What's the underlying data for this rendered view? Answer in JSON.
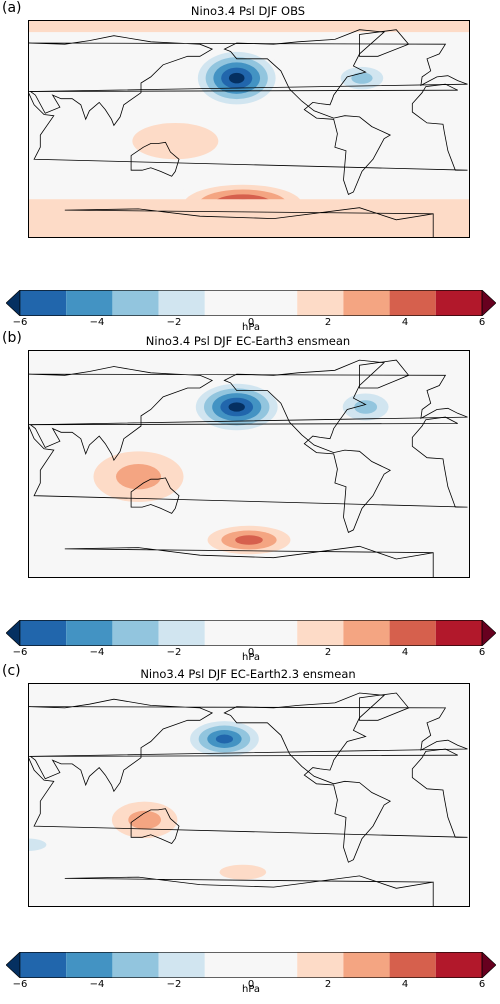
{
  "panels": [
    {
      "label": "(a)",
      "title": "Nino3.4 Psl DJF OBS",
      "features": [
        {
          "type": "ellipse",
          "lon": 200,
          "lat": 42,
          "rx": 38,
          "ry": 26,
          "level": -6
        },
        {
          "type": "ellipse",
          "lon": 302,
          "lat": 42,
          "rx": 26,
          "ry": 14,
          "level": -3
        },
        {
          "type": "ellipse",
          "lon": 150,
          "lat": -10,
          "rx": 70,
          "ry": 30,
          "level": 2
        },
        {
          "type": "ellipse",
          "lon": 205,
          "lat": -62,
          "rx": 60,
          "ry": 20,
          "level": 5
        },
        {
          "type": "band",
          "lat0": -90,
          "lat1": -58,
          "level": 2
        },
        {
          "type": "band",
          "lat0": 80,
          "lat1": 90,
          "level": 2
        },
        {
          "type": "ellipse",
          "lon": 240,
          "lat": 5,
          "rx": 60,
          "ry": 18,
          "level": -1
        },
        {
          "type": "ellipse",
          "lon": 60,
          "lat": 15,
          "rx": 50,
          "ry": 20,
          "level": 1
        }
      ]
    },
    {
      "label": "(b)",
      "title": "Nino3.4 Psl DJF EC-Earth3 ensmean",
      "features": [
        {
          "type": "ellipse",
          "lon": 200,
          "lat": 45,
          "rx": 40,
          "ry": 22,
          "level": -6
        },
        {
          "type": "ellipse",
          "lon": 305,
          "lat": 45,
          "rx": 28,
          "ry": 16,
          "level": -3
        },
        {
          "type": "ellipse",
          "lon": 120,
          "lat": -10,
          "rx": 55,
          "ry": 30,
          "level": 3
        },
        {
          "type": "ellipse",
          "lon": 210,
          "lat": -60,
          "rx": 45,
          "ry": 15,
          "level": 4
        },
        {
          "type": "ellipse",
          "lon": 40,
          "lat": 25,
          "rx": 40,
          "ry": 15,
          "level": 1
        },
        {
          "type": "ellipse",
          "lon": 270,
          "lat": -10,
          "rx": 40,
          "ry": 15,
          "level": -1
        }
      ]
    },
    {
      "label": "(c)",
      "title": "Nino3.4 Psl DJF EC-Earth2.3 ensmean",
      "features": [
        {
          "type": "ellipse",
          "lon": 190,
          "lat": 45,
          "rx": 35,
          "ry": 18,
          "level": -5
        },
        {
          "type": "ellipse",
          "lon": 125,
          "lat": -20,
          "rx": 40,
          "ry": 22,
          "level": 3
        },
        {
          "type": "ellipse",
          "lon": 205,
          "lat": -62,
          "rx": 38,
          "ry": 12,
          "level": 2
        },
        {
          "type": "ellipse",
          "lon": 30,
          "lat": -40,
          "rx": 30,
          "ry": 10,
          "level": -2
        },
        {
          "type": "ellipse",
          "lon": 260,
          "lat": 20,
          "rx": 40,
          "ry": 15,
          "level": 1
        }
      ]
    }
  ],
  "colorbar": {
    "unit": "hPa",
    "ticks": [
      "−6",
      "−4",
      "−2",
      "0",
      "2",
      "4",
      "6"
    ],
    "colors": [
      "#053061",
      "#2166ac",
      "#4393c3",
      "#92c5de",
      "#d1e5f0",
      "#f7f7f7",
      "#f7f7f7",
      "#fddbc7",
      "#f4a582",
      "#d6604d",
      "#b2182b",
      "#67001f"
    ]
  }
}
